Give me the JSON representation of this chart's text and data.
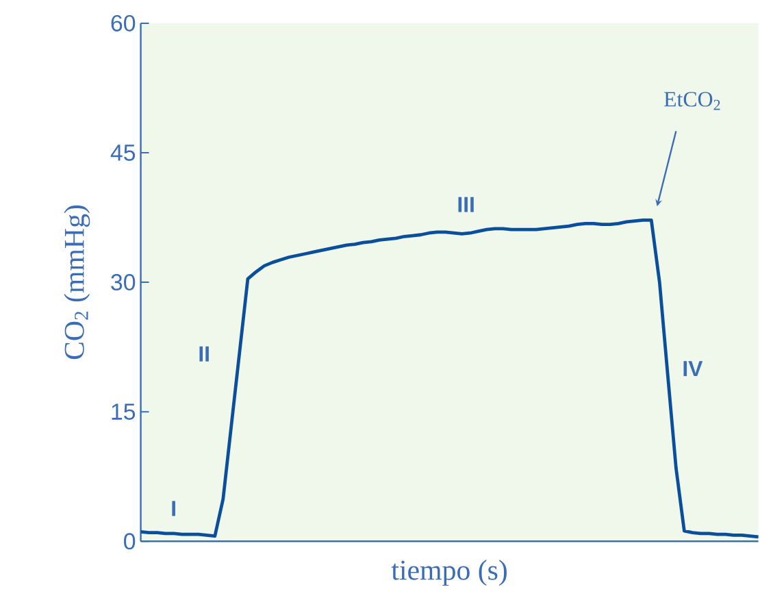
{
  "chart_data": {
    "type": "line",
    "xlabel": "tiempo (s)",
    "ylabel": "CO$_{2}$ (mmHg)",
    "categories": [
      null,
      null,
      null,
      null,
      null,
      null,
      null,
      null,
      null,
      null,
      null,
      null,
      null,
      null,
      null,
      null,
      null,
      null,
      null,
      null,
      null,
      null,
      null,
      null,
      null,
      null,
      null,
      null,
      null,
      null,
      null,
      null,
      null,
      null,
      null,
      null,
      null,
      null,
      null,
      null,
      null,
      null,
      null,
      null,
      null,
      null,
      null,
      null,
      null,
      null,
      null,
      null,
      null,
      null,
      null,
      null,
      null,
      null,
      null,
      null,
      null,
      null,
      null,
      null,
      null,
      null,
      null,
      null,
      null,
      null,
      null,
      null,
      null,
      null,
      null,
      null
    ],
    "series": [
      {
        "color": "#0b4f9c",
        "values": [
          1.1,
          1.0,
          1.0,
          0.9,
          0.9,
          0.8,
          0.8,
          0.8,
          0.7,
          0.6,
          4.9,
          13.4,
          21.9,
          30.4,
          31.2,
          31.9,
          32.3,
          32.6,
          32.9,
          33.1,
          33.3,
          33.5,
          33.7,
          33.9,
          34.1,
          34.3,
          34.4,
          34.6,
          34.7,
          34.9,
          35.0,
          35.1,
          35.3,
          35.4,
          35.5,
          35.7,
          35.8,
          35.8,
          35.7,
          35.6,
          35.7,
          35.9,
          36.1,
          36.2,
          36.2,
          36.1,
          36.1,
          36.1,
          36.1,
          36.2,
          36.3,
          36.4,
          36.5,
          36.7,
          36.8,
          36.8,
          36.7,
          36.7,
          36.8,
          37.0,
          37.1,
          37.2,
          37.2,
          30.0,
          19.2,
          8.5,
          1.2,
          1.0,
          0.9,
          0.9,
          0.8,
          0.8,
          0.7,
          0.7,
          0.6,
          0.5
        ]
      }
    ],
    "ylim": [
      0,
      60
    ],
    "yticks": [
      0,
      15,
      30,
      45,
      60
    ],
    "grid": false,
    "marker": "none",
    "line_style": "solid",
    "annotations": [
      "I",
      "II",
      "III",
      "IV",
      "EtCO$_{2}$"
    ]
  }
}
